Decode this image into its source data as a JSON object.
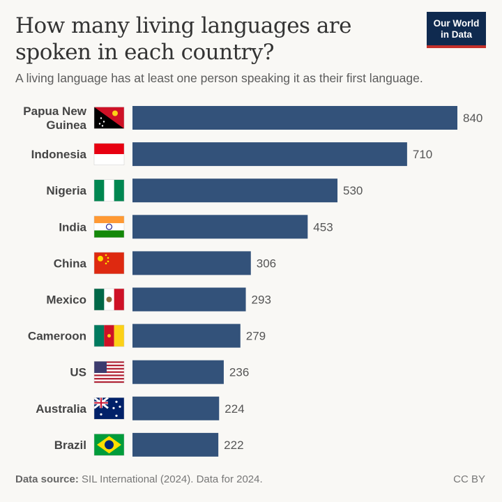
{
  "chart_data": {
    "type": "bar",
    "orientation": "horizontal",
    "title": "How many living languages are spoken in each country?",
    "subtitle": "A living language has at least one person speaking it as their first language.",
    "categories": [
      "Papua New Guinea",
      "Indonesia",
      "Nigeria",
      "India",
      "China",
      "Mexico",
      "Cameroon",
      "US",
      "Australia",
      "Brazil"
    ],
    "values": [
      840,
      710,
      530,
      453,
      306,
      293,
      279,
      236,
      224,
      222
    ],
    "flags": [
      "papua-new-guinea",
      "indonesia",
      "nigeria",
      "india",
      "china",
      "mexico",
      "cameroon",
      "us",
      "australia",
      "brazil"
    ],
    "xlim": [
      0,
      840
    ],
    "grid": false,
    "bar_color": "#33527a"
  },
  "logo": {
    "line1": "Our World",
    "line2": "in Data"
  },
  "footer": {
    "source_label": "Data source:",
    "source_text": "SIL International (2024). Data for 2024.",
    "license": "CC BY"
  }
}
